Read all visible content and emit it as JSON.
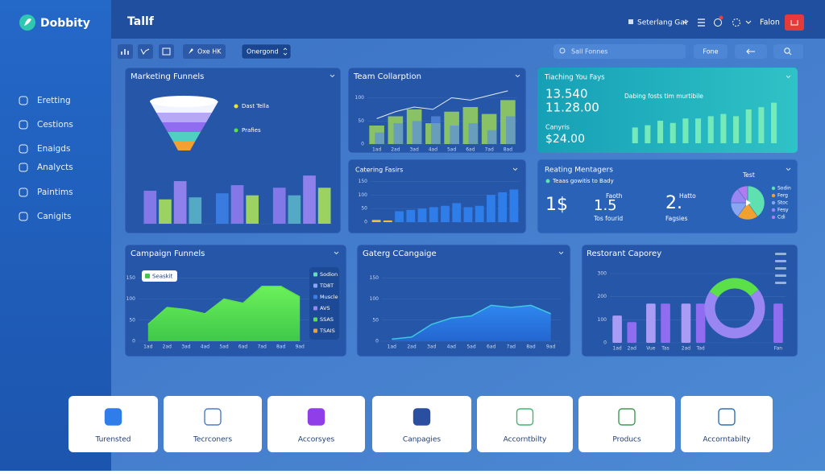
{
  "sidebar": {
    "logo": "Dobbity",
    "menu": [
      "Eretting",
      "Cestions",
      "Enaigds",
      "Analycts",
      "Paintims",
      "Canigits"
    ]
  },
  "topbar": {
    "title": "Tallf",
    "selector": "Seterlang Gat",
    "user": "Falon"
  },
  "toolbar": {
    "chips": [
      "Oxe HK",
      "Onergond"
    ],
    "search": "Sall Fonnes",
    "button": "Fone"
  },
  "marketing": {
    "title": "Marketing Funnels",
    "legend": [
      "Dast Tella",
      "Prafies"
    ],
    "bars": {
      "ylim": [
        0,
        100
      ],
      "groups": [
        {
          "values": [
            65,
            48,
            84,
            52
          ],
          "colors": [
            "#8f7cf0",
            "#a8e05a",
            "#9a86f2",
            "#5ab4c8"
          ]
        },
        {
          "values": [
            60,
            76,
            56
          ],
          "colors": [
            "#3d7fe6",
            "#8f7cf0",
            "#a8e05a"
          ]
        },
        {
          "values": [
            71,
            56,
            95,
            71
          ],
          "colors": [
            "#8f7cf0",
            "#5ab4c8",
            "#9a86f2",
            "#a8e05a"
          ]
        }
      ]
    }
  },
  "team": {
    "title": "Team Collarption",
    "chart": {
      "categories": [
        "1ad",
        "2ad",
        "3ad",
        "4ad",
        "5ad",
        "6ad",
        "7ad",
        "8ad"
      ],
      "ylim": [
        0,
        120
      ],
      "yticks": [
        0,
        50,
        100
      ],
      "series": [
        {
          "kind": "bar",
          "color": "#9bd35a",
          "values": [
            40,
            60,
            75,
            45,
            70,
            80,
            65,
            95
          ]
        },
        {
          "kind": "bar",
          "color": "#5a8fe0",
          "values": [
            25,
            45,
            50,
            60,
            40,
            45,
            30,
            60
          ]
        },
        {
          "kind": "line",
          "color": "#e8eefc",
          "values": [
            55,
            70,
            80,
            75,
            100,
            95,
            105,
            115
          ]
        }
      ]
    }
  },
  "catering": {
    "title": "Catering Fasirs",
    "chart": {
      "ylim": [
        0,
        160
      ],
      "yticks": [
        0,
        50,
        100,
        150
      ],
      "series": [
        {
          "color": "#f2c230",
          "values": [
            8,
            6,
            null,
            null,
            null,
            null,
            null,
            null,
            null,
            null,
            null,
            null,
            null
          ]
        },
        {
          "color": "#2f7de8",
          "values": [
            null,
            null,
            40,
            45,
            50,
            55,
            60,
            70,
            55,
            60,
            100,
            110,
            120
          ]
        }
      ]
    }
  },
  "teal": {
    "title": "Tiaching You Fays",
    "big1": "13.540",
    "big2": "11.28.00",
    "label": "Canyris",
    "amount": "$24.00",
    "note": "Dabing fosts tim murtibile",
    "bars": {
      "ylim": [
        0,
        100
      ],
      "color": "#7ef0b8",
      "values": [
        35,
        40,
        50,
        45,
        55,
        55,
        60,
        65,
        60,
        75,
        80,
        90
      ]
    }
  },
  "managers": {
    "title": "Reating Mentagers",
    "subtitle": "Teaas gowitis to Bady",
    "stat1": "1$",
    "stat2": {
      "value": "1.5",
      "label": "Faoth",
      "caption": "Tos fourid"
    },
    "stat3": {
      "value": "2.",
      "label": "Hatto",
      "caption": "Fagsies"
    },
    "pie": {
      "title": "Test",
      "labels": [
        "Sodin",
        "Ferg",
        "Stoc",
        "Fesy",
        "Cdi"
      ],
      "values": [
        40,
        20,
        15,
        15,
        10
      ],
      "colors": [
        "#5fe0b0",
        "#f2a030",
        "#8aa6f0",
        "#9a86f2",
        "#b07cf0"
      ]
    }
  },
  "campaign": {
    "title": "Campaign Funnels",
    "tooltip": "Seaskit",
    "legend": {
      "labels": [
        "Sodion",
        "TD8T",
        "Muscle",
        "AVS",
        "SSAS",
        "TSAIS"
      ],
      "colors": [
        "#5fe0b0",
        "#8aa6f0",
        "#3d7fe6",
        "#9a86f2",
        "#5be04a",
        "#f2a030"
      ]
    },
    "chart": {
      "categories": [
        "1ad",
        "2ad",
        "3ad",
        "4ad",
        "5ad",
        "6ad",
        "7ad",
        "8ad",
        "9ad"
      ],
      "ylim": [
        0,
        160
      ],
      "yticks": [
        0,
        50,
        100,
        150
      ],
      "color": "#5be04a",
      "values": [
        40,
        80,
        75,
        65,
        100,
        90,
        130,
        130,
        105
      ]
    }
  },
  "gaterg": {
    "title": "Gaterg CCangaige",
    "chart": {
      "categories": [
        "1ad",
        "2ad",
        "3ad",
        "4ad",
        "5ad",
        "6ad",
        "7ad",
        "8ad",
        "9ad"
      ],
      "ylim": [
        0,
        160
      ],
      "yticks": [
        0,
        50,
        100,
        150
      ],
      "color": "#2f7de8",
      "values": [
        5,
        10,
        40,
        55,
        60,
        85,
        80,
        85,
        65
      ]
    }
  },
  "restorant": {
    "title": "Restorant Caporey",
    "chart": {
      "categories": [
        "1ad",
        "2ad",
        "Vue",
        "Tas",
        "2ad",
        "Tad",
        "Fan"
      ],
      "ylim": [
        0,
        300
      ],
      "yticks": [
        0,
        100,
        200,
        300
      ],
      "values": [
        118,
        90,
        170,
        170,
        170,
        170,
        170
      ],
      "colors": [
        "#a99cf4",
        "#8f6cf0",
        "#a99cf4",
        "#8f6cf0",
        "#a99cf4",
        "#8f6cf0",
        "#8f6cf0"
      ]
    },
    "donut": {
      "values": [
        70,
        30
      ],
      "colors": [
        "#9a86f2",
        "#5be04a"
      ]
    }
  },
  "cards": [
    "Turensted",
    "Tecrconers",
    "Accorsyes",
    "Canpagies",
    "Accorntbilty",
    "Producs",
    "Accorntabilty"
  ]
}
